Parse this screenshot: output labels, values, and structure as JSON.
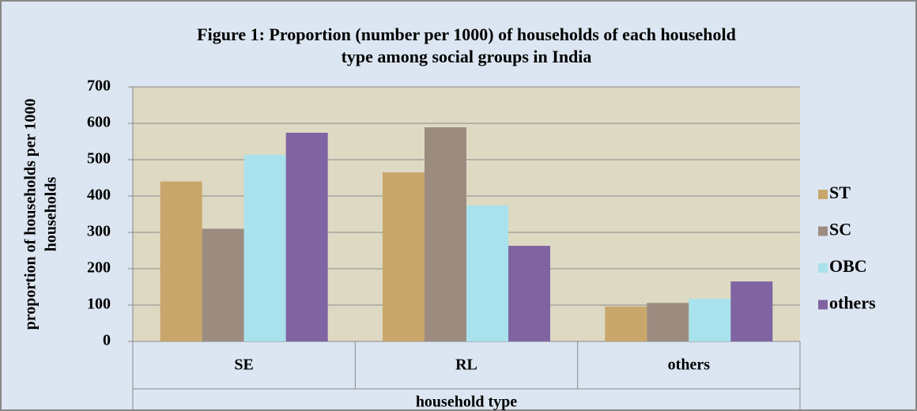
{
  "chart_data": {
    "type": "bar",
    "title": [
      "Figure 1: Proportion (number per 1000) of households of each household",
      "type among social groups in India"
    ],
    "y_label": [
      "proportion of households per 1000",
      "households"
    ],
    "x_label": "household type",
    "categories": [
      "SE",
      "RL",
      "others"
    ],
    "series": [
      {
        "name": "ST",
        "color": "#c9a66b",
        "values": [
          440,
          465,
          96
        ]
      },
      {
        "name": "SC",
        "color": "#9c8c80",
        "values": [
          310,
          589,
          106
        ]
      },
      {
        "name": "OBC",
        "color": "#a9e2ec",
        "values": [
          513,
          374,
          117
        ]
      },
      {
        "name": "others",
        "color": "#8064a2",
        "values": [
          574,
          263,
          165
        ]
      }
    ],
    "ylim": [
      0,
      700
    ],
    "yticks": [
      0,
      100,
      200,
      300,
      400,
      500,
      600,
      700
    ],
    "grid": true,
    "legend": "right"
  }
}
